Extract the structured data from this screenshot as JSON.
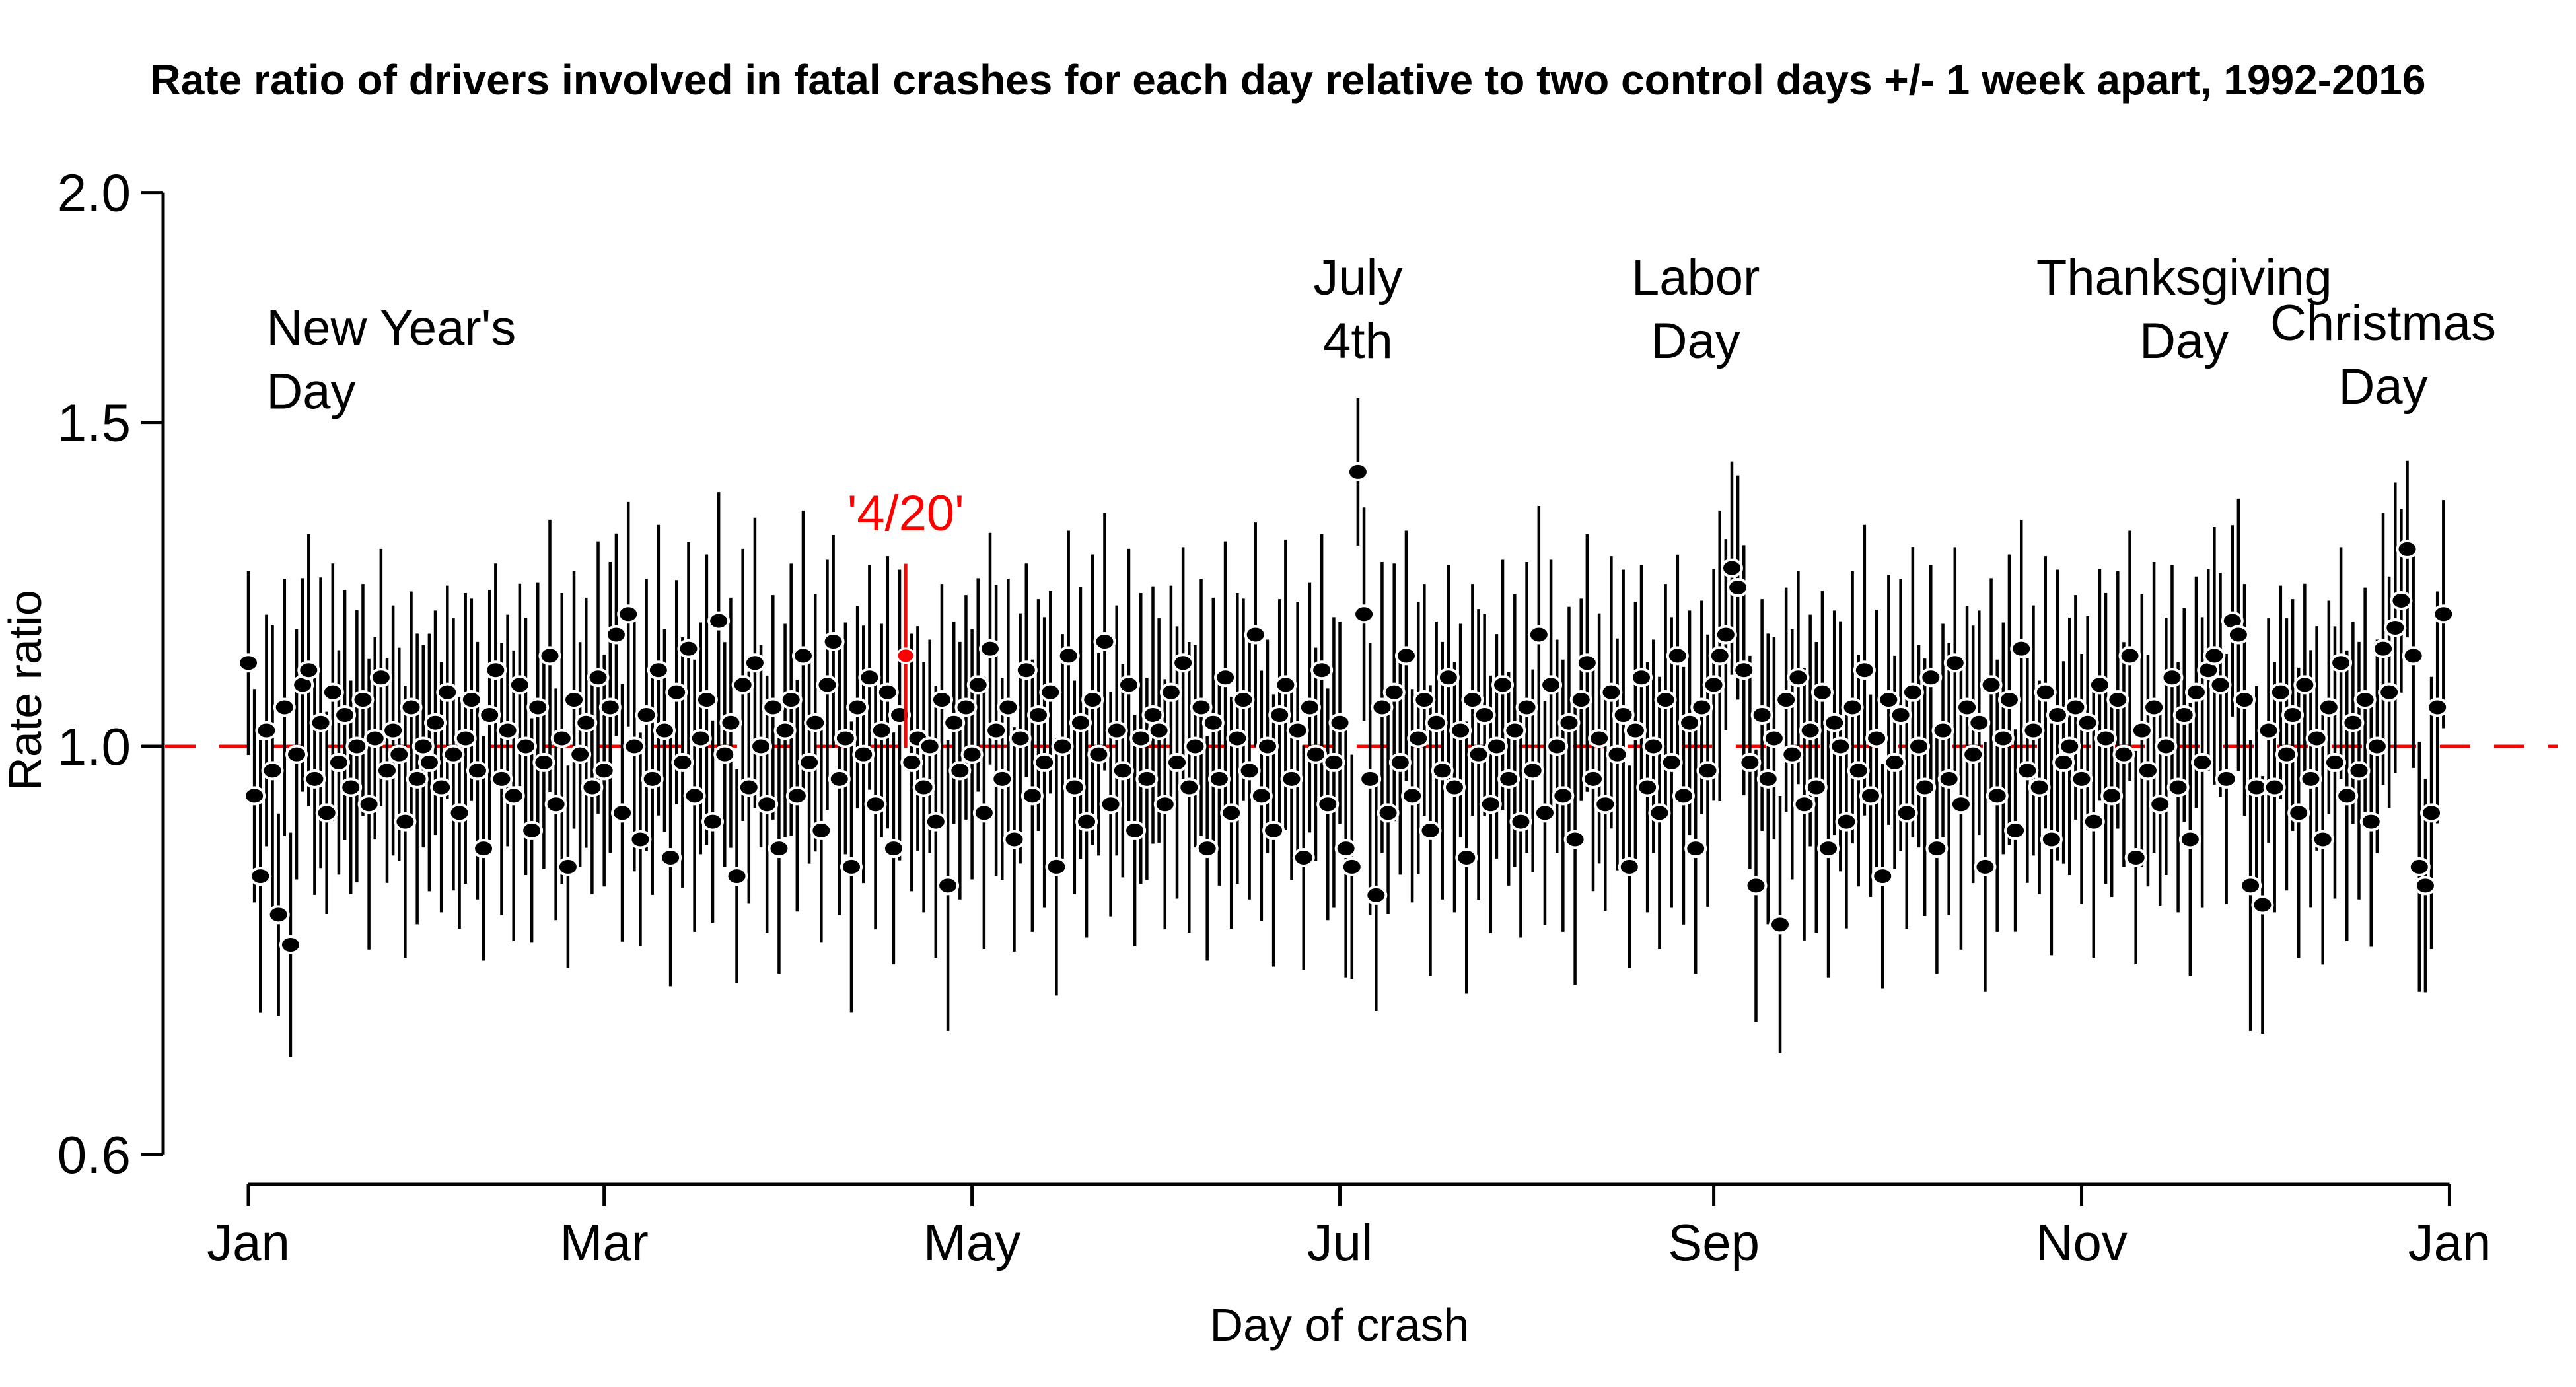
{
  "chart_data": {
    "type": "scatter",
    "title": "Rate ratio of drivers involved in fatal crashes for each day relative to two control days +/- 1 week apart, 1992-2016",
    "xlabel": "Day of crash",
    "ylabel": "Rate ratio",
    "yscale": "log",
    "ylim": [
      0.6,
      2.0
    ],
    "grid": false,
    "legend": "none",
    "y_ticks": [
      {
        "value": 2.0,
        "label": "2.0"
      },
      {
        "value": 1.5,
        "label": "1.5"
      },
      {
        "value": 1.0,
        "label": "1.0"
      },
      {
        "value": 0.6,
        "label": "0.6"
      }
    ],
    "x_ticks": [
      {
        "day": 1,
        "label": "Jan"
      },
      {
        "day": 60,
        "label": "Mar"
      },
      {
        "day": 121,
        "label": "May"
      },
      {
        "day": 182,
        "label": "Jul"
      },
      {
        "day": 244,
        "label": "Sep"
      },
      {
        "day": 305,
        "label": "Nov"
      },
      {
        "day": 366,
        "label": "Jan"
      }
    ],
    "reference_line": {
      "value": 1.0,
      "color": "#ff0000",
      "style": "dashed"
    },
    "point_color": "#000000",
    "highlight": {
      "day": 110,
      "color": "#ff0000",
      "label": "'4/20'",
      "value": 1.12
    },
    "notable_points": {
      "new_years_day_1": 1.11,
      "apr20_110": 1.12,
      "july4th_185": 1.41,
      "labor_day_247": 1.25,
      "thanksgiving_330": 1.17,
      "christmas_359": 1.28
    },
    "values": [
      1.11,
      0.94,
      0.85,
      1.02,
      0.97,
      0.81,
      1.05,
      0.78,
      0.99,
      1.08,
      1.1,
      0.96,
      1.03,
      0.92,
      1.07,
      0.98,
      1.04,
      0.95,
      1.0,
      1.06,
      0.93,
      1.01,
      1.09,
      0.97,
      1.02,
      0.99,
      0.91,
      1.05,
      0.96,
      1.0,
      0.98,
      1.03,
      0.95,
      1.07,
      0.99,
      0.92,
      1.01,
      1.06,
      0.97,
      0.88,
      1.04,
      1.1,
      0.96,
      1.02,
      0.94,
      1.08,
      1.0,
      0.9,
      1.05,
      0.98,
      1.12,
      0.93,
      1.01,
      0.86,
      1.06,
      0.99,
      1.03,
      0.95,
      1.09,
      0.97,
      1.05,
      1.15,
      0.92,
      1.18,
      1.0,
      0.89,
      1.04,
      0.96,
      1.1,
      1.02,
      0.87,
      1.07,
      0.98,
      1.13,
      0.94,
      1.01,
      1.06,
      0.91,
      1.17,
      0.99,
      1.03,
      0.85,
      1.08,
      0.95,
      1.11,
      1.0,
      0.93,
      1.05,
      0.88,
      1.02,
      1.06,
      0.94,
      1.12,
      0.98,
      1.03,
      0.9,
      1.08,
      1.14,
      0.96,
      1.01,
      0.86,
      1.05,
      0.99,
      1.09,
      0.93,
      1.02,
      1.07,
      0.88,
      1.04,
      1.12,
      0.98,
      1.01,
      0.95,
      1.0,
      0.91,
      1.06,
      0.84,
      1.03,
      0.97,
      1.05,
      0.99,
      1.08,
      0.92,
      1.13,
      1.02,
      0.96,
      1.05,
      0.89,
      1.01,
      1.1,
      0.94,
      1.04,
      0.98,
      1.07,
      0.86,
      1.0,
      1.12,
      0.95,
      1.03,
      0.91,
      1.06,
      0.99,
      1.14,
      0.93,
      1.02,
      0.97,
      1.08,
      0.9,
      1.01,
      0.96,
      1.04,
      1.02,
      0.93,
      1.07,
      0.98,
      1.11,
      0.95,
      1.0,
      1.05,
      0.88,
      1.03,
      0.96,
      1.09,
      0.92,
      1.01,
      1.06,
      0.97,
      1.15,
      0.94,
      1.0,
      0.9,
      1.04,
      1.08,
      0.96,
      1.02,
      0.87,
      1.05,
      0.99,
      1.1,
      0.93,
      0.98,
      1.03,
      0.88,
      0.86,
      1.41,
      1.18,
      0.96,
      0.83,
      1.05,
      0.92,
      1.07,
      0.98,
      1.12,
      0.94,
      1.01,
      1.06,
      0.9,
      1.03,
      0.97,
      1.09,
      0.95,
      1.02,
      0.87,
      1.06,
      0.99,
      1.04,
      0.93,
      1.0,
      1.08,
      0.96,
      1.02,
      0.91,
      1.05,
      0.97,
      1.15,
      0.92,
      1.08,
      1.0,
      0.94,
      1.03,
      0.89,
      1.06,
      1.11,
      0.96,
      1.01,
      0.93,
      1.07,
      0.99,
      1.04,
      0.86,
      1.02,
      1.09,
      0.95,
      1.0,
      0.92,
      1.06,
      0.98,
      1.12,
      0.94,
      1.03,
      0.88,
      1.05,
      0.97,
      1.08,
      1.12,
      1.15,
      1.25,
      1.22,
      1.1,
      0.98,
      0.84,
      1.04,
      0.96,
      1.01,
      0.8,
      1.06,
      0.99,
      1.09,
      0.93,
      1.02,
      0.95,
      1.07,
      0.88,
      1.03,
      1.0,
      0.91,
      1.05,
      0.97,
      1.1,
      0.94,
      1.01,
      0.85,
      1.06,
      0.98,
      1.04,
      0.92,
      1.07,
      1.0,
      0.95,
      1.09,
      0.88,
      1.02,
      0.96,
      1.11,
      0.93,
      1.05,
      0.99,
      1.03,
      0.86,
      1.08,
      0.94,
      1.01,
      1.06,
      0.9,
      1.13,
      0.97,
      1.02,
      0.95,
      1.07,
      0.89,
      1.04,
      0.98,
      1.0,
      1.05,
      0.96,
      1.03,
      0.91,
      1.08,
      1.01,
      0.94,
      1.06,
      0.99,
      1.12,
      0.87,
      1.02,
      0.97,
      1.05,
      0.93,
      1.0,
      1.09,
      0.95,
      1.04,
      0.89,
      1.07,
      0.98,
      1.1,
      1.12,
      1.08,
      0.96,
      1.17,
      1.15,
      1.06,
      0.84,
      0.95,
      0.82,
      1.02,
      0.95,
      1.07,
      0.99,
      1.04,
      0.92,
      1.08,
      0.96,
      1.01,
      0.89,
      1.05,
      0.98,
      1.11,
      0.94,
      1.03,
      0.97,
      1.06,
      0.91,
      1.0,
      1.13,
      1.07,
      1.16,
      1.2,
      1.28,
      1.12,
      0.86,
      0.84,
      0.92,
      1.05,
      1.18
    ],
    "ci_halfwidth_log10_cycle": [
      0.068,
      0.058,
      0.074,
      0.063,
      0.079,
      0.055,
      0.07,
      0.061
    ],
    "ci_halfwidth_log10_overrides": {
      "1": 0.05,
      "110": 0.05,
      "185": 0.04,
      "246": 0.052,
      "247": 0.058,
      "330": 0.052,
      "358": 0.05,
      "359": 0.048,
      "365": 0.062
    },
    "annotations": [
      {
        "id": "new-years",
        "lines": [
          "New Year's",
          "Day"
        ],
        "day": 4,
        "value": 1.69,
        "align": "start",
        "color": "#000000"
      },
      {
        "id": "july-4th",
        "lines": [
          "July",
          "4th"
        ],
        "day": 185,
        "value": 1.8,
        "align": "middle",
        "color": "#000000"
      },
      {
        "id": "labor-day",
        "lines": [
          "Labor",
          "Day"
        ],
        "day": 241,
        "value": 1.8,
        "align": "middle",
        "color": "#000000"
      },
      {
        "id": "thanksgiving",
        "lines": [
          "Thanksgiving",
          "Day"
        ],
        "day": 322,
        "value": 1.8,
        "align": "middle",
        "color": "#000000"
      },
      {
        "id": "christmas",
        "lines": [
          "Christmas",
          "Day"
        ],
        "day": 355,
        "value": 1.7,
        "align": "middle",
        "color": "#000000"
      },
      {
        "id": "four-twenty",
        "lines": [
          "'4/20'"
        ],
        "day": 110,
        "value": 1.34,
        "align": "middle",
        "color": "#ff0000"
      }
    ]
  }
}
